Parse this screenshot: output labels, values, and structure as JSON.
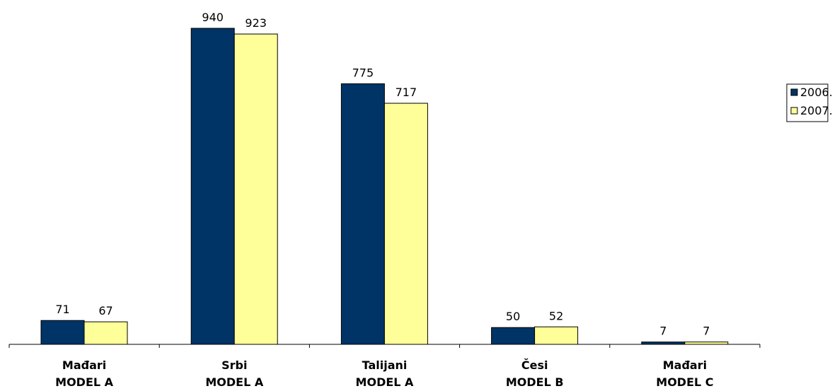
{
  "chart_data": {
    "type": "bar",
    "title": "",
    "xlabel": "",
    "ylabel": "",
    "categories": [
      [
        "Mađari",
        "MODEL A"
      ],
      [
        "Srbi",
        "MODEL A"
      ],
      [
        "Talijani",
        "MODEL A"
      ],
      [
        "Česi",
        "MODEL B"
      ],
      [
        "Mađari",
        "MODEL C"
      ]
    ],
    "series": [
      {
        "name": "2006.",
        "color": "#003366",
        "values": [
          71,
          940,
          775,
          50,
          7
        ]
      },
      {
        "name": "2007.",
        "color": "#FFFF99",
        "values": [
          67,
          923,
          717,
          52,
          7
        ]
      }
    ],
    "ylim": [
      0,
      1000
    ],
    "grid": false,
    "legend": "right",
    "data_labels": true
  }
}
